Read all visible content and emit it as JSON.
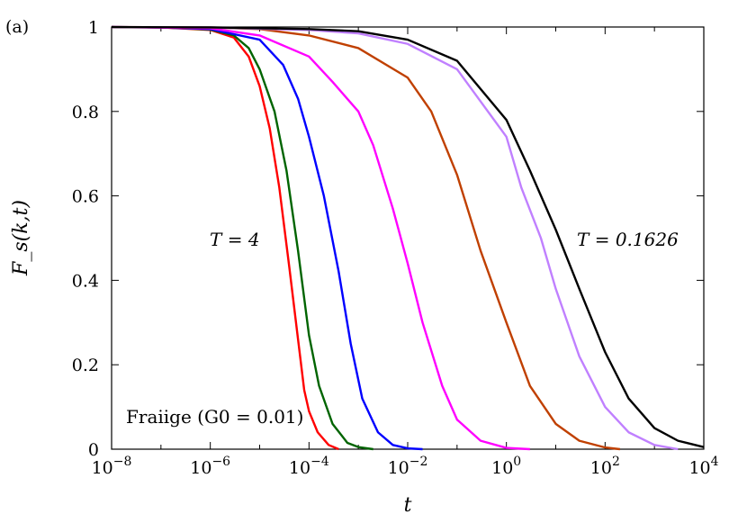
{
  "panel_label": "(a)",
  "colors": {
    "T4": "#ff0000",
    "Tb": "#006400",
    "Tc": "#0000ff",
    "Td": "#ff00ff",
    "Te": "#c04000",
    "Tf": "#c080ff",
    "T0_1626": "#000000"
  },
  "chart_data": {
    "type": "line",
    "title": "",
    "xlabel": "t",
    "ylabel": "F_s(k,t)",
    "x_scale": "log10",
    "xlim": [
      1e-08,
      10000.0
    ],
    "ylim": [
      0,
      1
    ],
    "grid": false,
    "x_ticks": [
      {
        "exp": "-8"
      },
      {
        "exp": "-6"
      },
      {
        "exp": "-4"
      },
      {
        "exp": "-2"
      },
      {
        "exp": "0"
      },
      {
        "exp": "2"
      },
      {
        "exp": "4"
      }
    ],
    "y_ticks": [
      "0",
      "0.2",
      "0.4",
      "0.6",
      "0.8",
      "1"
    ],
    "annotations": {
      "left": "T = 4",
      "right": "T = 0.1626",
      "bottom": "Fraiige (G0 = 0.01)"
    },
    "series": [
      {
        "color_key": "T4",
        "points": [
          [
            1e-08,
            1.0
          ],
          [
            1e-07,
            0.999
          ],
          [
            1e-06,
            0.993
          ],
          [
            3e-06,
            0.975
          ],
          [
            6e-06,
            0.93
          ],
          [
            1e-05,
            0.86
          ],
          [
            1.6e-05,
            0.76
          ],
          [
            2.5e-05,
            0.62
          ],
          [
            4e-05,
            0.43
          ],
          [
            6e-05,
            0.26
          ],
          [
            8e-05,
            0.14
          ],
          [
            0.0001,
            0.09
          ],
          [
            0.00015,
            0.04
          ],
          [
            0.00025,
            0.01
          ],
          [
            0.0004,
            0.0
          ]
        ]
      },
      {
        "color_key": "Tb",
        "points": [
          [
            1e-08,
            1.0
          ],
          [
            1e-07,
            0.999
          ],
          [
            1e-06,
            0.994
          ],
          [
            3e-06,
            0.98
          ],
          [
            6e-06,
            0.95
          ],
          [
            1e-05,
            0.9
          ],
          [
            2e-05,
            0.8
          ],
          [
            3.5e-05,
            0.66
          ],
          [
            6e-05,
            0.47
          ],
          [
            0.0001,
            0.27
          ],
          [
            0.00016,
            0.15
          ],
          [
            0.0003,
            0.06
          ],
          [
            0.0006,
            0.015
          ],
          [
            0.001,
            0.005
          ],
          [
            0.002,
            0.0
          ]
        ]
      },
      {
        "color_key": "Tc",
        "points": [
          [
            1e-08,
            1.0
          ],
          [
            1e-07,
            0.999
          ],
          [
            1e-06,
            0.995
          ],
          [
            1e-05,
            0.97
          ],
          [
            3e-05,
            0.91
          ],
          [
            6e-05,
            0.83
          ],
          [
            0.0001,
            0.74
          ],
          [
            0.0002,
            0.6
          ],
          [
            0.0004,
            0.42
          ],
          [
            0.0007,
            0.25
          ],
          [
            0.0012,
            0.12
          ],
          [
            0.0025,
            0.04
          ],
          [
            0.005,
            0.01
          ],
          [
            0.01,
            0.002
          ],
          [
            0.02,
            0.0
          ]
        ]
      },
      {
        "color_key": "Td",
        "points": [
          [
            1e-08,
            1.0
          ],
          [
            1e-06,
            0.997
          ],
          [
            1e-05,
            0.98
          ],
          [
            0.0001,
            0.93
          ],
          [
            0.0003,
            0.87
          ],
          [
            0.001,
            0.8
          ],
          [
            0.002,
            0.72
          ],
          [
            0.005,
            0.57
          ],
          [
            0.01,
            0.44
          ],
          [
            0.02,
            0.3
          ],
          [
            0.05,
            0.15
          ],
          [
            0.1,
            0.07
          ],
          [
            0.3,
            0.02
          ],
          [
            1,
            0.003
          ],
          [
            3,
            0.0
          ]
        ]
      },
      {
        "color_key": "Te",
        "points": [
          [
            1e-08,
            1.0
          ],
          [
            1e-06,
            0.999
          ],
          [
            1e-05,
            0.995
          ],
          [
            0.0001,
            0.98
          ],
          [
            0.001,
            0.95
          ],
          [
            0.01,
            0.88
          ],
          [
            0.03,
            0.8
          ],
          [
            0.1,
            0.65
          ],
          [
            0.3,
            0.47
          ],
          [
            1,
            0.3
          ],
          [
            3,
            0.15
          ],
          [
            10,
            0.06
          ],
          [
            30,
            0.02
          ],
          [
            100,
            0.004
          ],
          [
            200,
            0.0
          ]
        ]
      },
      {
        "color_key": "Tf",
        "points": [
          [
            1e-08,
            1.0
          ],
          [
            1e-06,
            0.999
          ],
          [
            0.0001,
            0.993
          ],
          [
            0.001,
            0.985
          ],
          [
            0.01,
            0.96
          ],
          [
            0.1,
            0.9
          ],
          [
            1,
            0.74
          ],
          [
            2,
            0.62
          ],
          [
            5,
            0.5
          ],
          [
            10,
            0.38
          ],
          [
            30,
            0.22
          ],
          [
            100,
            0.1
          ],
          [
            300,
            0.04
          ],
          [
            1000,
            0.01
          ],
          [
            3000,
            0.0
          ]
        ]
      },
      {
        "color_key": "T0_1626",
        "points": [
          [
            1e-08,
            1.0
          ],
          [
            1e-06,
            0.999
          ],
          [
            0.0001,
            0.995
          ],
          [
            0.001,
            0.99
          ],
          [
            0.01,
            0.97
          ],
          [
            0.1,
            0.92
          ],
          [
            1,
            0.78
          ],
          [
            3,
            0.66
          ],
          [
            10,
            0.52
          ],
          [
            30,
            0.38
          ],
          [
            100,
            0.23
          ],
          [
            300,
            0.12
          ],
          [
            1000,
            0.05
          ],
          [
            3000,
            0.02
          ],
          [
            10000,
            0.005
          ]
        ]
      }
    ]
  }
}
